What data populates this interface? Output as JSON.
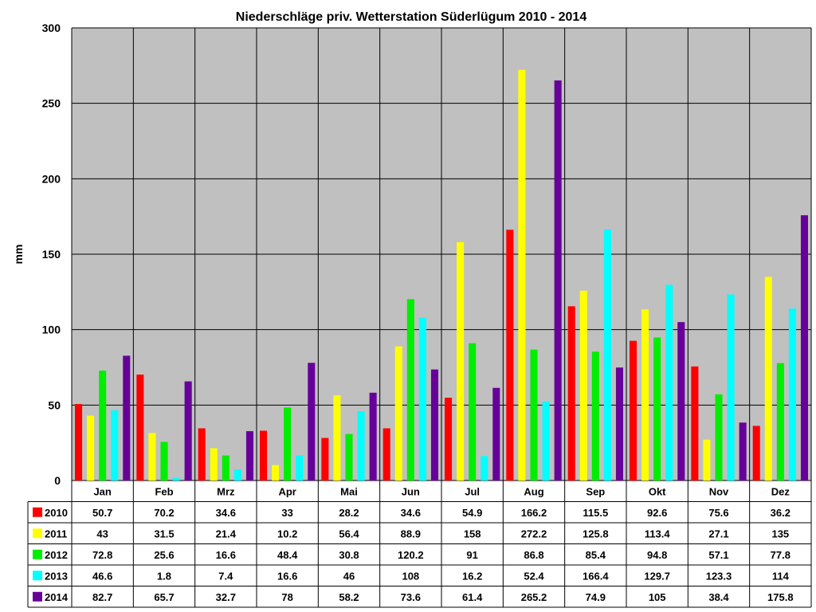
{
  "chart_data": {
    "type": "bar",
    "title": "Niederschläge priv. Wetterstation Süderlügum 2010 - 2014",
    "ylabel": "mm",
    "xlabel": "",
    "ylim": [
      0,
      300
    ],
    "yticks": [
      0,
      50,
      100,
      150,
      200,
      250,
      300
    ],
    "grid": true,
    "legend": "data-table-below",
    "categories": [
      "Jan",
      "Feb",
      "Mrz",
      "Apr",
      "Mai",
      "Jun",
      "Jul",
      "Aug",
      "Sep",
      "Okt",
      "Nov",
      "Dez"
    ],
    "series": [
      {
        "name": "2010",
        "color": "#ff0000",
        "values": [
          50.7,
          70.2,
          34.6,
          33,
          28.2,
          34.6,
          54.9,
          166.2,
          115.5,
          92.6,
          75.6,
          36.2
        ]
      },
      {
        "name": "2011",
        "color": "#ffff00",
        "values": [
          43,
          31.5,
          21.4,
          10.2,
          56.4,
          88.9,
          158,
          272.2,
          125.8,
          113.4,
          27.1,
          135
        ]
      },
      {
        "name": "2012",
        "color": "#00ee00",
        "values": [
          72.8,
          25.6,
          16.6,
          48.4,
          30.8,
          120.2,
          91,
          86.8,
          85.4,
          94.8,
          57.1,
          77.8
        ]
      },
      {
        "name": "2013",
        "color": "#00ffff",
        "values": [
          46.6,
          1.8,
          7.4,
          16.6,
          46,
          108,
          16.2,
          52.4,
          166.4,
          129.7,
          123.3,
          114
        ]
      },
      {
        "name": "2014",
        "color": "#660099",
        "values": [
          82.7,
          65.7,
          32.7,
          78,
          58.2,
          73.6,
          61.4,
          265.2,
          74.9,
          105,
          38.4,
          175.8
        ]
      }
    ]
  }
}
